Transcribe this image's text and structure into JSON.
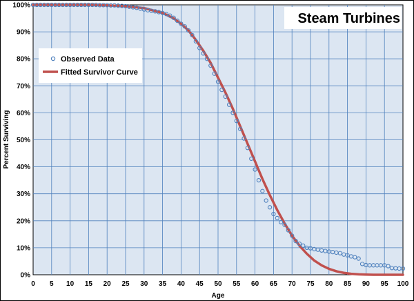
{
  "chart_data": {
    "type": "scatter",
    "title": "Steam Turbines",
    "xlabel": "Age",
    "ylabel": "Percent Surviving",
    "xlim": [
      0,
      100
    ],
    "ylim": [
      0,
      100
    ],
    "x_ticks": [
      0,
      5,
      10,
      15,
      20,
      25,
      30,
      35,
      40,
      45,
      50,
      55,
      60,
      65,
      70,
      75,
      80,
      85,
      90,
      95,
      100
    ],
    "y_ticks": [
      "0%",
      "10%",
      "20%",
      "30%",
      "40%",
      "50%",
      "60%",
      "70%",
      "80%",
      "90%",
      "100%"
    ],
    "grid": true,
    "legend_position": "upper-left",
    "colors": {
      "plot_background": "#dce6f2",
      "grid": "#4f81bd",
      "observed": "#4f81bd",
      "fitted": "#c0504d"
    },
    "series": [
      {
        "name": "Observed Data",
        "style": "markers",
        "x": [
          0,
          1,
          2,
          3,
          4,
          5,
          6,
          7,
          8,
          9,
          10,
          11,
          12,
          13,
          14,
          15,
          16,
          17,
          18,
          19,
          20,
          21,
          22,
          23,
          24,
          25,
          26,
          27,
          28,
          29,
          30,
          31,
          32,
          33,
          34,
          35,
          36,
          37,
          38,
          39,
          40,
          41,
          42,
          43,
          44,
          45,
          46,
          47,
          48,
          49,
          50,
          51,
          52,
          53,
          54,
          55,
          56,
          57,
          58,
          59,
          60,
          61,
          62,
          63,
          64,
          65,
          66,
          67,
          68,
          69,
          70,
          71,
          72,
          73,
          74,
          75,
          76,
          77,
          78,
          79,
          80,
          81,
          82,
          83,
          84,
          85,
          86,
          87,
          88,
          89,
          90,
          91,
          92,
          93,
          94,
          95,
          96,
          97,
          98,
          99,
          100
        ],
        "y": [
          100,
          100,
          100,
          100,
          100,
          100,
          100,
          100,
          100,
          100,
          100,
          100,
          100,
          100,
          100,
          100,
          100,
          100,
          99.9,
          99.9,
          99.9,
          99.8,
          99.8,
          99.7,
          99.6,
          99.5,
          99.3,
          99.1,
          98.9,
          98.6,
          98.3,
          98.0,
          97.8,
          97.6,
          97.3,
          97.0,
          96.6,
          96.0,
          95.2,
          94.1,
          93.0,
          92.0,
          90.5,
          88.8,
          86.5,
          84.0,
          82.0,
          80.0,
          77.5,
          74.5,
          71.5,
          68.5,
          66.0,
          63.0,
          60.0,
          57.0,
          54.0,
          50.5,
          47.0,
          43.0,
          39.0,
          35.0,
          31.0,
          27.5,
          25.0,
          22.5,
          21.0,
          19.5,
          18.5,
          16.5,
          14.5,
          12.5,
          11.5,
          10.8,
          10.0,
          9.8,
          9.5,
          9.3,
          9.0,
          8.8,
          8.6,
          8.4,
          8.2,
          8.0,
          7.5,
          7.2,
          6.8,
          6.5,
          6.0,
          4.0,
          3.6,
          3.5,
          3.5,
          3.5,
          3.5,
          3.5,
          3.2,
          2.5,
          2.4,
          2.3,
          2.3
        ]
      },
      {
        "name": "Fitted Survivor Curve",
        "style": "line",
        "x": [
          0,
          5,
          10,
          15,
          20,
          25,
          30,
          35,
          38,
          40,
          42,
          44,
          46,
          48,
          50,
          52,
          54,
          56,
          58,
          60,
          62,
          64,
          66,
          68,
          70,
          72,
          74,
          76,
          78,
          80,
          82,
          84,
          86,
          88,
          90,
          92,
          95,
          100
        ],
        "y": [
          100,
          100,
          100,
          100,
          99.8,
          99.5,
          98.8,
          97.0,
          95.0,
          93.0,
          90.5,
          87.0,
          83.0,
          78.5,
          73.0,
          67.5,
          61.5,
          55.0,
          48.5,
          42.0,
          35.5,
          29.5,
          24.0,
          19.0,
          14.5,
          10.8,
          7.8,
          5.3,
          3.5,
          2.2,
          1.3,
          0.7,
          0.35,
          0.15,
          0.05,
          0,
          0,
          0
        ]
      }
    ]
  }
}
